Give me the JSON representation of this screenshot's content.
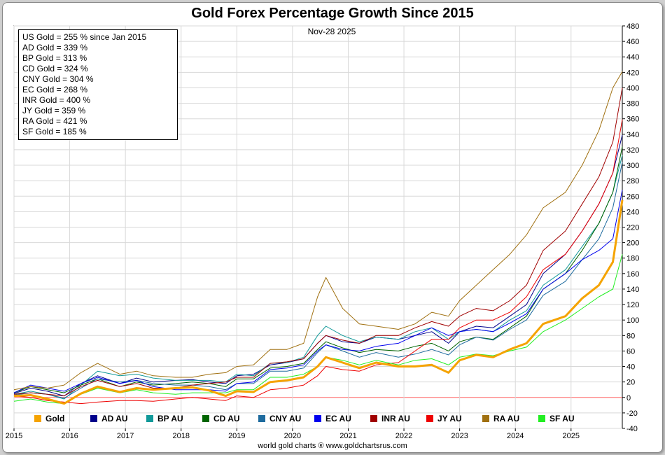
{
  "page": {
    "title": "Gold Forex Percentage Growth Since 2015",
    "date": "Nov-28  2025",
    "footer": "world gold charts ® www.goldchartsrus.com"
  },
  "stats": [
    "US Gold = 255 % since Jan 2015",
    "AD Gold = 339 %",
    "BP Gold = 313 %",
    "CD Gold = 324 %",
    "CNY Gold = 304 %",
    "EC Gold = 268 %",
    "INR Gold = 400 %",
    "JY Gold = 359 %",
    "RA Gold = 421 %",
    "SF Gold = 185 %"
  ],
  "chart_data": {
    "type": "line",
    "title": "Gold Forex Percentage Growth Since 2015",
    "xlabel": "",
    "ylabel": "",
    "ylim": [
      -40,
      480
    ],
    "y_ticks": [
      -40,
      -20,
      0,
      20,
      40,
      60,
      80,
      100,
      120,
      140,
      160,
      180,
      200,
      220,
      240,
      260,
      280,
      300,
      320,
      340,
      360,
      380,
      400,
      420,
      440,
      460,
      480
    ],
    "x_ticks": [
      "2015",
      "2016",
      "2017",
      "2018",
      "2019",
      "2020",
      "2021",
      "2022",
      "2023",
      "2024",
      "2025"
    ],
    "x_tick_values": [
      2015,
      2016,
      2017,
      2018,
      2019,
      2020,
      2021,
      2022,
      2023,
      2024,
      2025
    ],
    "xlim": [
      2015.0,
      2025.92
    ],
    "grid": true,
    "legend_position": "bottom",
    "zero_line_color": "#ff6666",
    "series": [
      {
        "name": "Gold",
        "color": "#f5a300",
        "width": 3,
        "x": [
          2015.0,
          2015.3,
          2015.6,
          2015.9,
          2016.2,
          2016.5,
          2016.9,
          2017.2,
          2017.5,
          2017.9,
          2018.2,
          2018.5,
          2018.8,
          2019.0,
          2019.3,
          2019.6,
          2019.9,
          2020.2,
          2020.45,
          2020.6,
          2020.9,
          2021.2,
          2021.5,
          2021.9,
          2022.2,
          2022.5,
          2022.8,
          2023.0,
          2023.3,
          2023.6,
          2023.9,
          2024.2,
          2024.5,
          2024.9,
          2025.2,
          2025.5,
          2025.75,
          2025.92
        ],
        "y": [
          2,
          3,
          -2,
          -8,
          5,
          14,
          7,
          12,
          10,
          12,
          13,
          9,
          2,
          8,
          7,
          20,
          22,
          26,
          40,
          52,
          45,
          38,
          45,
          40,
          40,
          42,
          32,
          48,
          55,
          52,
          62,
          70,
          95,
          105,
          128,
          145,
          175,
          255
        ]
      },
      {
        "name": "AD AU",
        "color": "#00008b",
        "width": 1,
        "x": [
          2015.0,
          2015.3,
          2015.6,
          2015.9,
          2016.2,
          2016.5,
          2016.9,
          2017.2,
          2017.5,
          2017.9,
          2018.2,
          2018.5,
          2018.8,
          2019.0,
          2019.3,
          2019.6,
          2019.9,
          2020.2,
          2020.45,
          2020.6,
          2020.9,
          2021.2,
          2021.5,
          2021.9,
          2022.2,
          2022.5,
          2022.8,
          2023.0,
          2023.3,
          2023.6,
          2023.9,
          2024.2,
          2024.5,
          2024.9,
          2025.2,
          2025.5,
          2025.75,
          2025.92
        ],
        "y": [
          5,
          12,
          8,
          2,
          18,
          28,
          18,
          25,
          20,
          22,
          23,
          20,
          18,
          28,
          30,
          42,
          45,
          50,
          70,
          80,
          72,
          70,
          78,
          75,
          80,
          85,
          70,
          85,
          92,
          90,
          105,
          120,
          160,
          185,
          215,
          250,
          290,
          339
        ]
      },
      {
        "name": "BP AU",
        "color": "#119999",
        "width": 1,
        "x": [
          2015.0,
          2015.3,
          2015.6,
          2015.9,
          2016.2,
          2016.5,
          2016.9,
          2017.2,
          2017.5,
          2017.9,
          2018.2,
          2018.5,
          2018.8,
          2019.0,
          2019.3,
          2019.6,
          2019.9,
          2020.2,
          2020.45,
          2020.6,
          2020.9,
          2021.2,
          2021.5,
          2021.9,
          2022.2,
          2022.5,
          2022.8,
          2023.0,
          2023.3,
          2023.6,
          2023.9,
          2024.2,
          2024.5,
          2024.9,
          2025.2,
          2025.5,
          2025.75,
          2025.92
        ],
        "y": [
          4,
          8,
          4,
          -2,
          16,
          34,
          28,
          30,
          25,
          22,
          22,
          22,
          20,
          30,
          28,
          44,
          45,
          52,
          80,
          92,
          80,
          72,
          78,
          75,
          85,
          90,
          75,
          85,
          88,
          85,
          100,
          112,
          145,
          165,
          195,
          225,
          265,
          313
        ]
      },
      {
        "name": "CD AU",
        "color": "#006400",
        "width": 1,
        "x": [
          2015.0,
          2015.3,
          2015.6,
          2015.9,
          2016.2,
          2016.5,
          2016.9,
          2017.2,
          2017.5,
          2017.9,
          2018.2,
          2018.5,
          2018.8,
          2019.0,
          2019.3,
          2019.6,
          2019.9,
          2020.2,
          2020.45,
          2020.6,
          2020.9,
          2021.2,
          2021.5,
          2021.9,
          2022.2,
          2022.5,
          2022.8,
          2023.0,
          2023.3,
          2023.6,
          2023.9,
          2024.2,
          2024.5,
          2024.9,
          2025.2,
          2025.5,
          2025.75,
          2025.92
        ],
        "y": [
          6,
          14,
          10,
          6,
          16,
          24,
          14,
          20,
          16,
          18,
          20,
          18,
          14,
          24,
          24,
          38,
          40,
          44,
          62,
          72,
          64,
          58,
          62,
          60,
          66,
          70,
          60,
          72,
          78,
          75,
          90,
          105,
          140,
          160,
          190,
          225,
          265,
          324
        ]
      },
      {
        "name": "CNY AU",
        "color": "#1e6b9e",
        "width": 1,
        "x": [
          2015.0,
          2015.3,
          2015.6,
          2015.9,
          2016.2,
          2016.5,
          2016.9,
          2017.2,
          2017.5,
          2017.9,
          2018.2,
          2018.5,
          2018.8,
          2019.0,
          2019.3,
          2019.6,
          2019.9,
          2020.2,
          2020.45,
          2020.6,
          2020.9,
          2021.2,
          2021.5,
          2021.9,
          2022.2,
          2022.5,
          2022.8,
          2023.0,
          2023.3,
          2023.6,
          2023.9,
          2024.2,
          2024.5,
          2024.9,
          2025.2,
          2025.5,
          2025.75,
          2025.92
        ],
        "y": [
          3,
          6,
          4,
          -1,
          12,
          24,
          20,
          22,
          18,
          16,
          16,
          14,
          10,
          18,
          18,
          34,
          34,
          38,
          58,
          68,
          60,
          52,
          58,
          52,
          56,
          62,
          55,
          68,
          78,
          74,
          88,
          100,
          132,
          150,
          178,
          205,
          245,
          304
        ]
      },
      {
        "name": "EC AU",
        "color": "#0000ee",
        "width": 1,
        "x": [
          2015.0,
          2015.3,
          2015.6,
          2015.9,
          2016.2,
          2016.5,
          2016.9,
          2017.2,
          2017.5,
          2017.9,
          2018.2,
          2018.5,
          2018.8,
          2019.0,
          2019.3,
          2019.6,
          2019.9,
          2020.2,
          2020.45,
          2020.6,
          2020.9,
          2021.2,
          2021.5,
          2021.9,
          2022.2,
          2022.5,
          2022.8,
          2023.0,
          2023.3,
          2023.6,
          2023.9,
          2024.2,
          2024.5,
          2024.9,
          2025.2,
          2025.5,
          2025.75,
          2025.92
        ],
        "y": [
          6,
          16,
          12,
          8,
          18,
          26,
          18,
          22,
          14,
          10,
          10,
          10,
          8,
          18,
          20,
          36,
          38,
          42,
          60,
          68,
          62,
          60,
          66,
          70,
          80,
          90,
          80,
          85,
          88,
          85,
          96,
          108,
          140,
          160,
          178,
          190,
          205,
          268
        ]
      },
      {
        "name": "INR AU",
        "color": "#a00000",
        "width": 1,
        "x": [
          2015.0,
          2015.3,
          2015.6,
          2015.9,
          2016.2,
          2016.5,
          2016.9,
          2017.2,
          2017.5,
          2017.9,
          2018.2,
          2018.5,
          2018.8,
          2019.0,
          2019.3,
          2019.6,
          2019.9,
          2020.2,
          2020.45,
          2020.6,
          2020.9,
          2021.2,
          2021.5,
          2021.9,
          2022.2,
          2022.5,
          2022.8,
          2023.0,
          2023.3,
          2023.6,
          2023.9,
          2024.2,
          2024.5,
          2024.9,
          2025.2,
          2025.5,
          2025.75,
          2025.92
        ],
        "y": [
          4,
          6,
          4,
          2,
          14,
          22,
          14,
          18,
          12,
          12,
          16,
          18,
          20,
          26,
          26,
          44,
          46,
          50,
          70,
          80,
          74,
          70,
          80,
          80,
          90,
          98,
          92,
          105,
          115,
          112,
          125,
          145,
          190,
          215,
          250,
          285,
          330,
          400
        ]
      },
      {
        "name": "JY AU",
        "color": "#ee0000",
        "width": 1,
        "x": [
          2015.0,
          2015.3,
          2015.6,
          2015.9,
          2016.2,
          2016.5,
          2016.9,
          2017.2,
          2017.5,
          2017.9,
          2018.2,
          2018.5,
          2018.8,
          2019.0,
          2019.3,
          2019.6,
          2019.9,
          2020.2,
          2020.45,
          2020.6,
          2020.9,
          2021.2,
          2021.5,
          2021.9,
          2022.2,
          2022.5,
          2022.8,
          2023.0,
          2023.3,
          2023.6,
          2023.9,
          2024.2,
          2024.5,
          2024.9,
          2025.2,
          2025.5,
          2025.75,
          2025.92
        ],
        "y": [
          2,
          0,
          -4,
          -6,
          -8,
          -6,
          -4,
          -4,
          -5,
          -2,
          0,
          -2,
          -4,
          2,
          0,
          10,
          12,
          16,
          28,
          40,
          36,
          34,
          42,
          45,
          60,
          75,
          75,
          90,
          100,
          100,
          110,
          130,
          165,
          185,
          215,
          250,
          290,
          359
        ]
      },
      {
        "name": "RA AU",
        "color": "#a07010",
        "width": 1,
        "x": [
          2015.0,
          2015.3,
          2015.6,
          2015.9,
          2016.2,
          2016.5,
          2016.9,
          2017.2,
          2017.5,
          2017.9,
          2018.2,
          2018.5,
          2018.8,
          2019.0,
          2019.3,
          2019.6,
          2019.9,
          2020.2,
          2020.45,
          2020.6,
          2020.9,
          2021.2,
          2021.5,
          2021.9,
          2022.2,
          2022.5,
          2022.8,
          2023.0,
          2023.3,
          2023.6,
          2023.9,
          2024.2,
          2024.5,
          2024.9,
          2025.2,
          2025.5,
          2025.75,
          2025.92
        ],
        "y": [
          10,
          14,
          12,
          16,
          32,
          44,
          30,
          34,
          28,
          26,
          26,
          30,
          32,
          40,
          42,
          62,
          62,
          70,
          130,
          155,
          115,
          95,
          92,
          88,
          95,
          110,
          105,
          125,
          145,
          165,
          185,
          210,
          245,
          265,
          300,
          345,
          400,
          421
        ]
      },
      {
        "name": "SF AU",
        "color": "#22ee22",
        "width": 1,
        "x": [
          2015.0,
          2015.3,
          2015.6,
          2015.9,
          2016.2,
          2016.5,
          2016.9,
          2017.2,
          2017.5,
          2017.9,
          2018.2,
          2018.5,
          2018.8,
          2019.0,
          2019.3,
          2019.6,
          2019.9,
          2020.2,
          2020.45,
          2020.6,
          2020.9,
          2021.2,
          2021.5,
          2021.9,
          2022.2,
          2022.5,
          2022.8,
          2023.0,
          2023.3,
          2023.6,
          2023.9,
          2024.2,
          2024.5,
          2024.9,
          2025.2,
          2025.5,
          2025.75,
          2025.92
        ],
        "y": [
          -5,
          -2,
          -6,
          -8,
          4,
          12,
          6,
          10,
          6,
          4,
          6,
          6,
          6,
          10,
          10,
          26,
          26,
          30,
          40,
          52,
          48,
          42,
          48,
          42,
          48,
          50,
          42,
          52,
          56,
          54,
          60,
          65,
          85,
          100,
          115,
          130,
          140,
          185
        ]
      }
    ]
  }
}
